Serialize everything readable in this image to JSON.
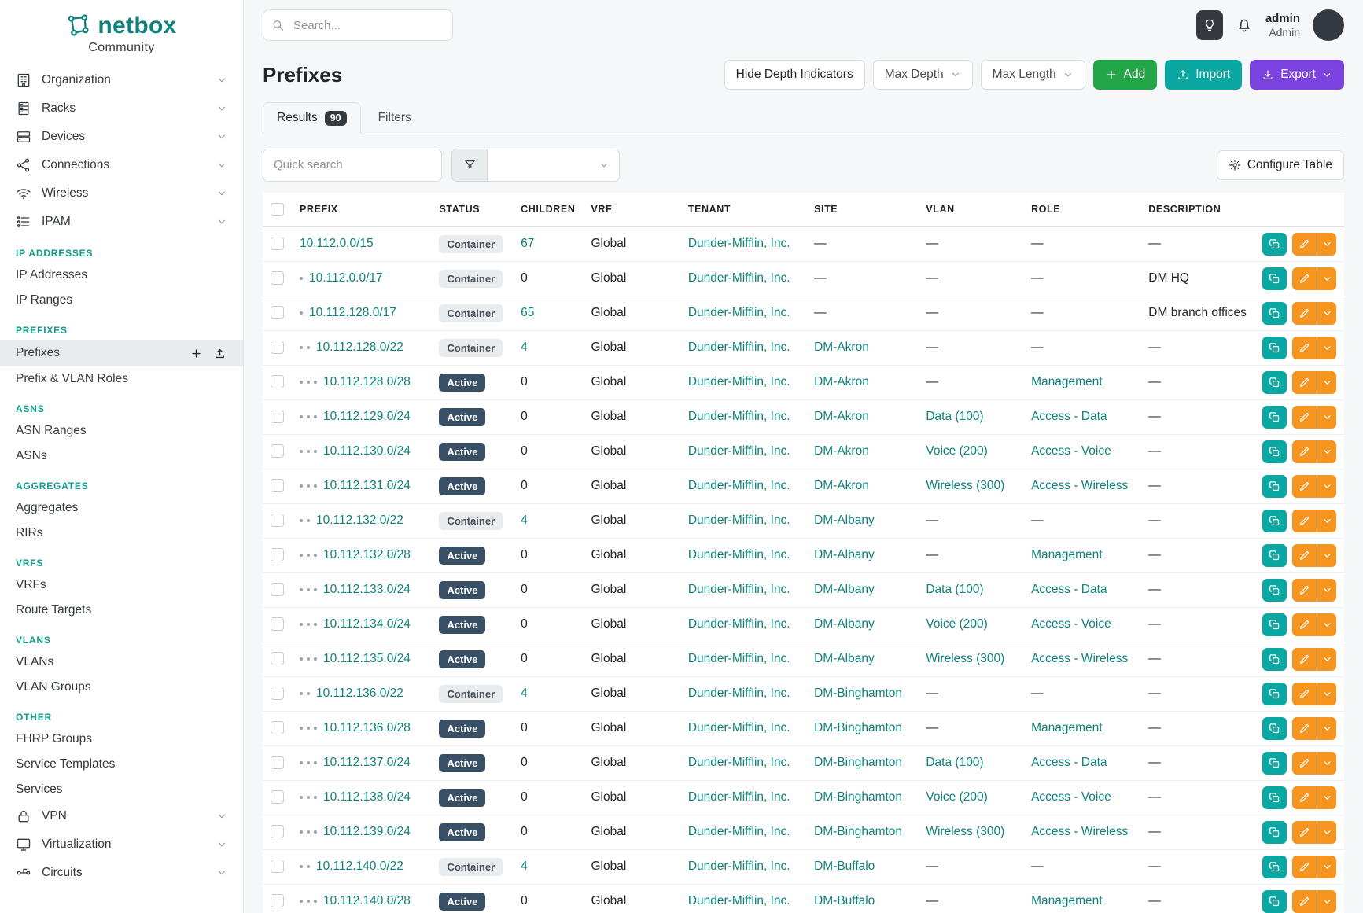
{
  "brand": {
    "name": "netbox",
    "subtitle": "Community"
  },
  "topbar": {
    "search_placeholder": "Search...",
    "user_name": "admin",
    "user_role": "Admin"
  },
  "sidebar": {
    "active_item": "Prefixes",
    "top_items": [
      {
        "label": "Organization",
        "icon": "building-icon"
      },
      {
        "label": "Racks",
        "icon": "rack-icon"
      },
      {
        "label": "Devices",
        "icon": "device-icon"
      },
      {
        "label": "Connections",
        "icon": "connections-icon"
      },
      {
        "label": "Wireless",
        "icon": "wifi-icon"
      },
      {
        "label": "IPAM",
        "icon": "ipam-icon"
      }
    ],
    "sections": [
      {
        "label": "IP ADDRESSES",
        "items": [
          "IP Addresses",
          "IP Ranges"
        ]
      },
      {
        "label": "PREFIXES",
        "items": [
          "Prefixes",
          "Prefix & VLAN Roles"
        ]
      },
      {
        "label": "ASNS",
        "items": [
          "ASN Ranges",
          "ASNs"
        ]
      },
      {
        "label": "AGGREGATES",
        "items": [
          "Aggregates",
          "RIRs"
        ]
      },
      {
        "label": "VRFS",
        "items": [
          "VRFs",
          "Route Targets"
        ]
      },
      {
        "label": "VLANS",
        "items": [
          "VLANs",
          "VLAN Groups"
        ]
      },
      {
        "label": "OTHER",
        "items": [
          "FHRP Groups",
          "Service Templates",
          "Services"
        ]
      }
    ],
    "bottom_items": [
      {
        "label": "VPN",
        "icon": "lock-icon"
      },
      {
        "label": "Virtualization",
        "icon": "monitor-icon"
      },
      {
        "label": "Circuits",
        "icon": "circuit-icon"
      }
    ]
  },
  "page": {
    "title": "Prefixes",
    "hide_depth_label": "Hide Depth Indicators",
    "max_depth_label": "Max Depth",
    "max_length_label": "Max Length",
    "add_label": "Add",
    "import_label": "Import",
    "export_label": "Export",
    "results_tab": "Results",
    "results_count": "90",
    "filters_tab": "Filters",
    "quick_search_placeholder": "Quick search",
    "configure_table_label": "Configure Table"
  },
  "table": {
    "columns": [
      "PREFIX",
      "STATUS",
      "CHILDREN",
      "VRF",
      "TENANT",
      "SITE",
      "VLAN",
      "ROLE",
      "DESCRIPTION"
    ],
    "rows": [
      {
        "depth": 0,
        "prefix": "10.112.0.0/15",
        "status": "Container",
        "children": "67",
        "vrf": "Global",
        "tenant": "Dunder-Mifflin, Inc.",
        "site": "—",
        "vlan": "—",
        "role": "—",
        "description": "—"
      },
      {
        "depth": 1,
        "prefix": "10.112.0.0/17",
        "status": "Container",
        "children": "0",
        "vrf": "Global",
        "tenant": "Dunder-Mifflin, Inc.",
        "site": "—",
        "vlan": "—",
        "role": "—",
        "description": "DM HQ"
      },
      {
        "depth": 1,
        "prefix": "10.112.128.0/17",
        "status": "Container",
        "children": "65",
        "vrf": "Global",
        "tenant": "Dunder-Mifflin, Inc.",
        "site": "—",
        "vlan": "—",
        "role": "—",
        "description": "DM branch offices"
      },
      {
        "depth": 2,
        "prefix": "10.112.128.0/22",
        "status": "Container",
        "children": "4",
        "vrf": "Global",
        "tenant": "Dunder-Mifflin, Inc.",
        "site": "DM-Akron",
        "vlan": "—",
        "role": "—",
        "description": "—"
      },
      {
        "depth": 3,
        "prefix": "10.112.128.0/28",
        "status": "Active",
        "children": "0",
        "vrf": "Global",
        "tenant": "Dunder-Mifflin, Inc.",
        "site": "DM-Akron",
        "vlan": "—",
        "role": "Management",
        "description": "—"
      },
      {
        "depth": 3,
        "prefix": "10.112.129.0/24",
        "status": "Active",
        "children": "0",
        "vrf": "Global",
        "tenant": "Dunder-Mifflin, Inc.",
        "site": "DM-Akron",
        "vlan": "Data (100)",
        "role": "Access - Data",
        "description": "—"
      },
      {
        "depth": 3,
        "prefix": "10.112.130.0/24",
        "status": "Active",
        "children": "0",
        "vrf": "Global",
        "tenant": "Dunder-Mifflin, Inc.",
        "site": "DM-Akron",
        "vlan": "Voice (200)",
        "role": "Access - Voice",
        "description": "—"
      },
      {
        "depth": 3,
        "prefix": "10.112.131.0/24",
        "status": "Active",
        "children": "0",
        "vrf": "Global",
        "tenant": "Dunder-Mifflin, Inc.",
        "site": "DM-Akron",
        "vlan": "Wireless (300)",
        "role": "Access - Wireless",
        "description": "—"
      },
      {
        "depth": 2,
        "prefix": "10.112.132.0/22",
        "status": "Container",
        "children": "4",
        "vrf": "Global",
        "tenant": "Dunder-Mifflin, Inc.",
        "site": "DM-Albany",
        "vlan": "—",
        "role": "—",
        "description": "—"
      },
      {
        "depth": 3,
        "prefix": "10.112.132.0/28",
        "status": "Active",
        "children": "0",
        "vrf": "Global",
        "tenant": "Dunder-Mifflin, Inc.",
        "site": "DM-Albany",
        "vlan": "—",
        "role": "Management",
        "description": "—"
      },
      {
        "depth": 3,
        "prefix": "10.112.133.0/24",
        "status": "Active",
        "children": "0",
        "vrf": "Global",
        "tenant": "Dunder-Mifflin, Inc.",
        "site": "DM-Albany",
        "vlan": "Data (100)",
        "role": "Access - Data",
        "description": "—"
      },
      {
        "depth": 3,
        "prefix": "10.112.134.0/24",
        "status": "Active",
        "children": "0",
        "vrf": "Global",
        "tenant": "Dunder-Mifflin, Inc.",
        "site": "DM-Albany",
        "vlan": "Voice (200)",
        "role": "Access - Voice",
        "description": "—"
      },
      {
        "depth": 3,
        "prefix": "10.112.135.0/24",
        "status": "Active",
        "children": "0",
        "vrf": "Global",
        "tenant": "Dunder-Mifflin, Inc.",
        "site": "DM-Albany",
        "vlan": "Wireless (300)",
        "role": "Access - Wireless",
        "description": "—"
      },
      {
        "depth": 2,
        "prefix": "10.112.136.0/22",
        "status": "Container",
        "children": "4",
        "vrf": "Global",
        "tenant": "Dunder-Mifflin, Inc.",
        "site": "DM-Binghamton",
        "vlan": "—",
        "role": "—",
        "description": "—"
      },
      {
        "depth": 3,
        "prefix": "10.112.136.0/28",
        "status": "Active",
        "children": "0",
        "vrf": "Global",
        "tenant": "Dunder-Mifflin, Inc.",
        "site": "DM-Binghamton",
        "vlan": "—",
        "role": "Management",
        "description": "—"
      },
      {
        "depth": 3,
        "prefix": "10.112.137.0/24",
        "status": "Active",
        "children": "0",
        "vrf": "Global",
        "tenant": "Dunder-Mifflin, Inc.",
        "site": "DM-Binghamton",
        "vlan": "Data (100)",
        "role": "Access - Data",
        "description": "—"
      },
      {
        "depth": 3,
        "prefix": "10.112.138.0/24",
        "status": "Active",
        "children": "0",
        "vrf": "Global",
        "tenant": "Dunder-Mifflin, Inc.",
        "site": "DM-Binghamton",
        "vlan": "Voice (200)",
        "role": "Access - Voice",
        "description": "—"
      },
      {
        "depth": 3,
        "prefix": "10.112.139.0/24",
        "status": "Active",
        "children": "0",
        "vrf": "Global",
        "tenant": "Dunder-Mifflin, Inc.",
        "site": "DM-Binghamton",
        "vlan": "Wireless (300)",
        "role": "Access - Wireless",
        "description": "—"
      },
      {
        "depth": 2,
        "prefix": "10.112.140.0/22",
        "status": "Container",
        "children": "4",
        "vrf": "Global",
        "tenant": "Dunder-Mifflin, Inc.",
        "site": "DM-Buffalo",
        "vlan": "—",
        "role": "—",
        "description": "—"
      },
      {
        "depth": 3,
        "prefix": "10.112.140.0/28",
        "status": "Active",
        "children": "0",
        "vrf": "Global",
        "tenant": "Dunder-Mifflin, Inc.",
        "site": "DM-Buffalo",
        "vlan": "—",
        "role": "Management",
        "description": "—"
      }
    ]
  },
  "colors": {
    "link_teal": "#0e827b",
    "add_green": "#23a648",
    "import_teal": "#0ba8a3",
    "export_purple": "#7b42e0",
    "edit_orange": "#f5941f",
    "active_badge_navy": "#384f66",
    "container_badge_gray": "#e9ecef"
  }
}
